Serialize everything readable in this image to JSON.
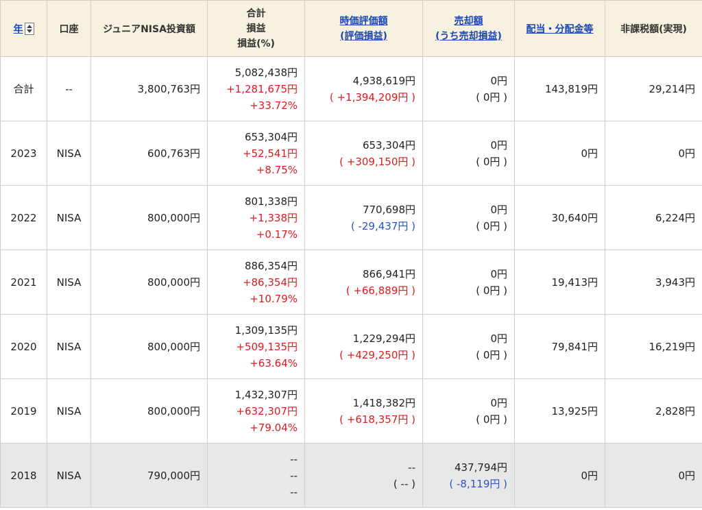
{
  "headers": {
    "year": "年",
    "account": "口座",
    "invest": "ジュニアNISA投資額",
    "total": [
      "合計",
      "損益",
      "損益(%)"
    ],
    "market": [
      "時価評価額",
      "(評価損益)"
    ],
    "sell": [
      "売却額",
      "(うち売却損益)"
    ],
    "dividend": "配当・分配金等",
    "taxfree": "非課税額(実現)"
  },
  "rows": [
    {
      "year": "合計",
      "account": "--",
      "invest": "3,800,763円",
      "total": "5,082,438円",
      "profit": "+1,281,675円",
      "pct": "+33.72%",
      "market": "4,938,619円",
      "eval": "( +1,394,209円 )",
      "sell": "0円",
      "sellpl": "( 0円 )",
      "dividend": "143,819円",
      "taxfree": "29,214円"
    },
    {
      "year": "2023",
      "account": "NISA",
      "invest": "600,763円",
      "total": "653,304円",
      "profit": "+52,541円",
      "pct": "+8.75%",
      "market": "653,304円",
      "eval": "( +309,150円 )",
      "sell": "0円",
      "sellpl": "( 0円 )",
      "dividend": "0円",
      "taxfree": "0円"
    },
    {
      "year": "2022",
      "account": "NISA",
      "invest": "800,000円",
      "total": "801,338円",
      "profit": "+1,338円",
      "pct": "+0.17%",
      "market": "770,698円",
      "eval": "( -29,437円 )",
      "sell": "0円",
      "sellpl": "( 0円 )",
      "dividend": "30,640円",
      "taxfree": "6,224円"
    },
    {
      "year": "2021",
      "account": "NISA",
      "invest": "800,000円",
      "total": "886,354円",
      "profit": "+86,354円",
      "pct": "+10.79%",
      "market": "866,941円",
      "eval": "( +66,889円 )",
      "sell": "0円",
      "sellpl": "( 0円 )",
      "dividend": "19,413円",
      "taxfree": "3,943円"
    },
    {
      "year": "2020",
      "account": "NISA",
      "invest": "800,000円",
      "total": "1,309,135円",
      "profit": "+509,135円",
      "pct": "+63.64%",
      "market": "1,229,294円",
      "eval": "( +429,250円 )",
      "sell": "0円",
      "sellpl": "( 0円 )",
      "dividend": "79,841円",
      "taxfree": "16,219円"
    },
    {
      "year": "2019",
      "account": "NISA",
      "invest": "800,000円",
      "total": "1,432,307円",
      "profit": "+632,307円",
      "pct": "+79.04%",
      "market": "1,418,382円",
      "eval": "( +618,357円 )",
      "sell": "0円",
      "sellpl": "( 0円 )",
      "dividend": "13,925円",
      "taxfree": "2,828円"
    },
    {
      "year": "2018",
      "account": "NISA",
      "invest": "790,000円",
      "total": "--",
      "profit": "--",
      "pct": "--",
      "market": "--",
      "eval": "( -- )",
      "sell": "437,794円",
      "sellpl": "( -8,119円 )",
      "dividend": "0円",
      "taxfree": "0円"
    }
  ],
  "colors": {
    "positive": "#e1181f",
    "negative": "#2a52c8",
    "header_bg": "#f6f2df",
    "link": "#1a47b4",
    "grey_row": "#e8e8e8"
  }
}
